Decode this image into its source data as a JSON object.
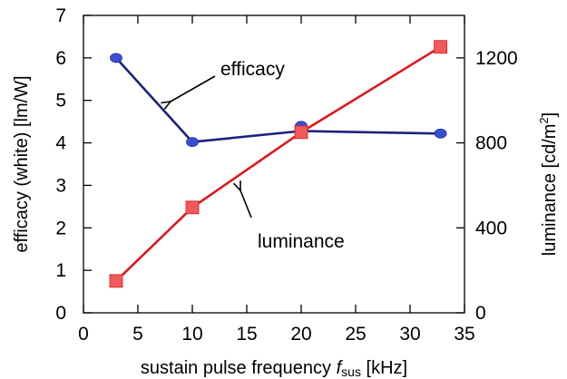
{
  "chart_data": {
    "type": "line",
    "xlabel": {
      "pre": "sustain pulse frequency ",
      "var": "f",
      "sub": "sus",
      "post": " [kHz]"
    },
    "ylabel": "efficacy (white) [lm/W]",
    "y2label": {
      "pre": "luminance [cd/m",
      "sup": "2",
      "post": "]"
    },
    "xlim": [
      0,
      35
    ],
    "ylim": [
      0,
      7
    ],
    "y2lim": [
      0,
      1400
    ],
    "xticks": [
      "0",
      "5",
      "10",
      "15",
      "20",
      "25",
      "30",
      "35"
    ],
    "yticks": [
      "0",
      "1",
      "2",
      "3",
      "4",
      "5",
      "6",
      "7"
    ],
    "y2ticks": [
      "0",
      "400",
      "800",
      "1200"
    ],
    "x_tick_values": [
      0,
      5,
      10,
      15,
      20,
      25,
      30,
      35
    ],
    "y_tick_values": [
      0,
      1,
      2,
      3,
      4,
      5,
      6,
      7
    ],
    "y2_tick_values": [
      0,
      400,
      800,
      1200
    ],
    "grid": false,
    "series": [
      {
        "name": "efficacy",
        "axis": "left",
        "color": "#1a237e",
        "marker": "circle",
        "marker_color": "#3b4fd6",
        "x": [
          3.0,
          10.0,
          20.0,
          32.8
        ],
        "y": [
          6.0,
          4.02,
          4.4,
          4.22
        ],
        "line_x": [
          3.0,
          10.0,
          20.0,
          32.8
        ],
        "line_y": [
          6.0,
          4.02,
          4.28,
          4.22
        ]
      },
      {
        "name": "luminance",
        "axis": "right",
        "color": "#e0161c",
        "marker": "square",
        "marker_color": "#f25a5a",
        "x": [
          3.0,
          10.0,
          20.0,
          32.8
        ],
        "y": [
          150,
          496,
          850,
          1252
        ],
        "line_x": [
          3.0,
          10.0,
          20.0,
          32.8
        ],
        "line_y": [
          150,
          496,
          850,
          1252
        ]
      }
    ],
    "annotations": [
      {
        "text": "efficacy",
        "series": "efficacy"
      },
      {
        "text": "luminance",
        "series": "luminance"
      }
    ]
  }
}
